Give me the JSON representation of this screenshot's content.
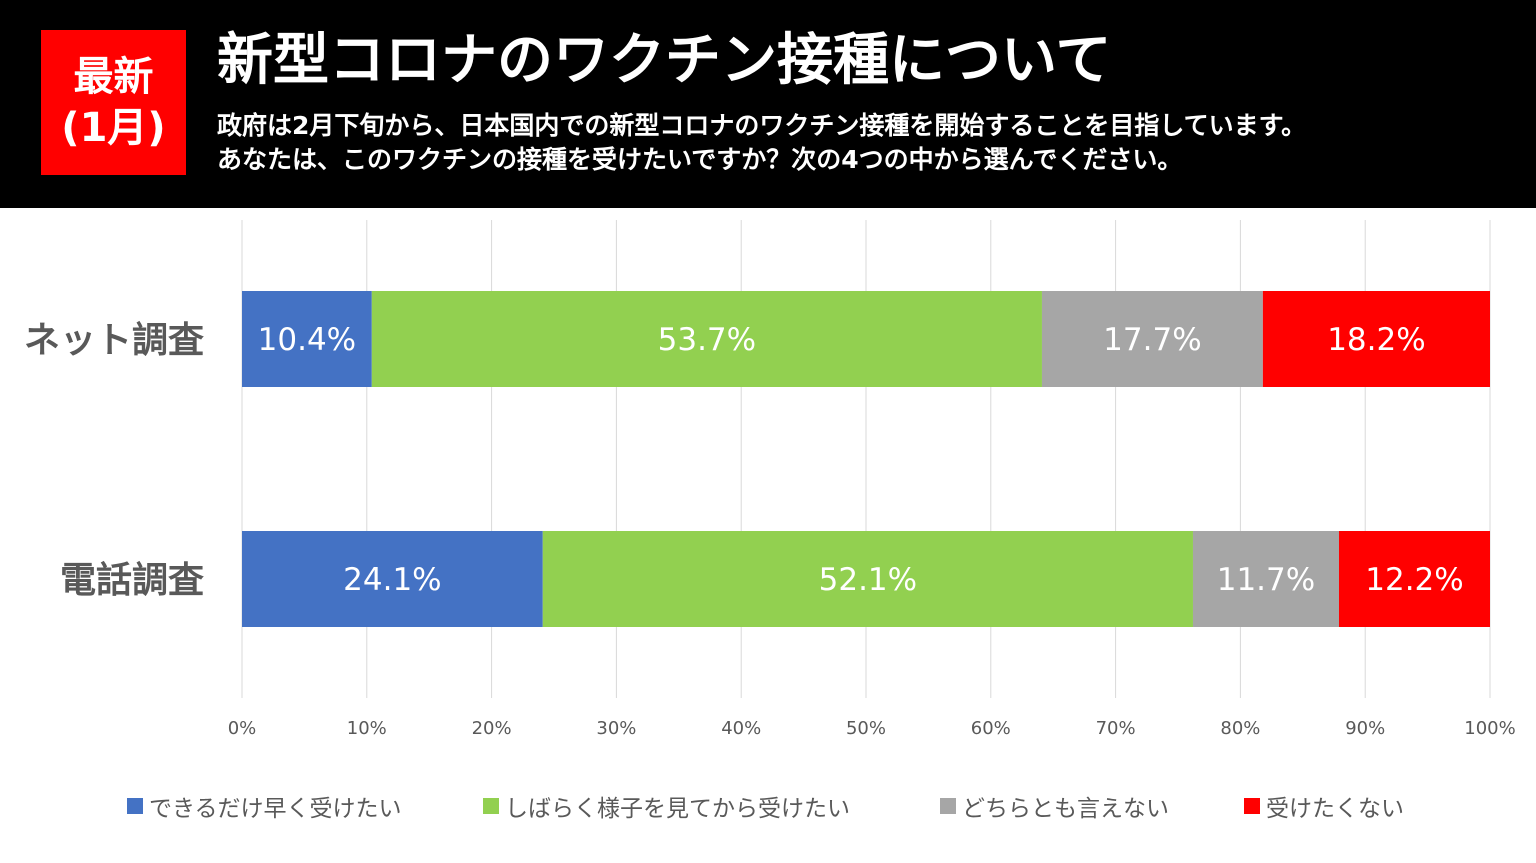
{
  "header": {
    "badge_line1": "最新",
    "badge_line2": "(1月)",
    "title": "新型コロナのワクチン接種について",
    "desc_line1": "政府は2月下旬から、日本国内での新型コロナのワクチン接種を開始することを目指しています。",
    "desc_line2": "あなたは、このワクチンの接種を受けたいですか？次の4つの中から選んでください。"
  },
  "colors": {
    "header_bg": "#000000",
    "badge_bg": "#ff0000",
    "series": [
      "#4472c4",
      "#92d050",
      "#a6a6a6",
      "#ff0000"
    ]
  },
  "chart_data": {
    "type": "bar",
    "orientation": "horizontal",
    "stacked": "100%",
    "categories": [
      "ネット調査",
      "電話調査"
    ],
    "series": [
      {
        "name": "できるだけ早く受けたい",
        "values": [
          10.4,
          24.1
        ],
        "labels": [
          "10.4%",
          "24.1%"
        ]
      },
      {
        "name": "しばらく様子を見てから受けたい",
        "values": [
          53.7,
          52.1
        ],
        "labels": [
          "53.7%",
          "52.1%"
        ]
      },
      {
        "name": "どちらとも言えない",
        "values": [
          17.7,
          11.7
        ],
        "labels": [
          "17.7%",
          "11.7%"
        ]
      },
      {
        "name": "受けたくない",
        "values": [
          18.2,
          12.2
        ],
        "labels": [
          "18.2%",
          "12.2%"
        ]
      }
    ],
    "x_ticks": [
      "0%",
      "10%",
      "20%",
      "30%",
      "40%",
      "50%",
      "60%",
      "70%",
      "80%",
      "90%",
      "100%"
    ],
    "xlim": [
      0,
      100
    ],
    "grid": true,
    "legend_position": "bottom"
  }
}
